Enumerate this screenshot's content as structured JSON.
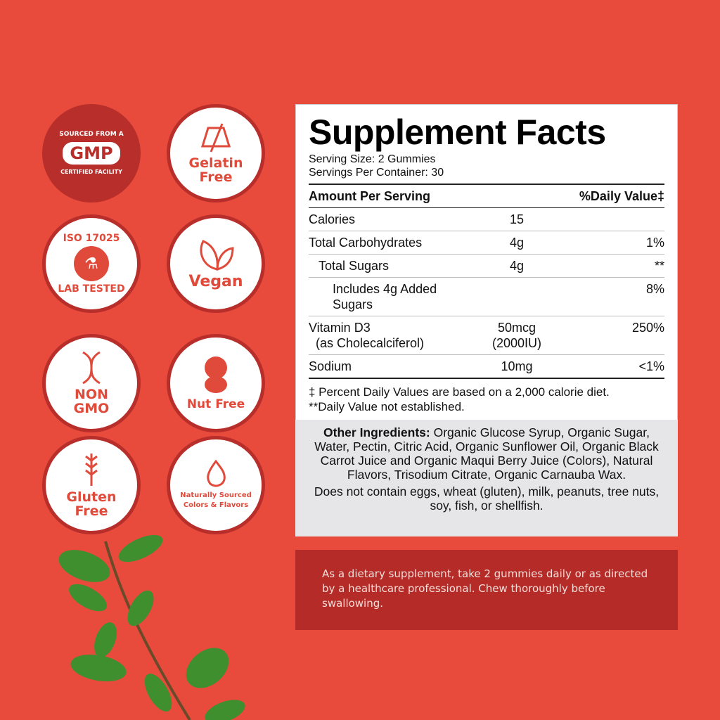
{
  "badges": [
    {
      "id": "gmp",
      "lines": [
        "SOURCED FROM A",
        "GMP",
        "CERTIFIED FACILITY"
      ],
      "icon": "gmp-seal-icon"
    },
    {
      "id": "gelatin",
      "label1": "Gelatin",
      "label2": "Free",
      "icon": "no-gelatin-icon"
    },
    {
      "id": "iso",
      "lines": [
        "ISO 17025",
        "LAB TESTED"
      ],
      "icon": "flask-check-icon"
    },
    {
      "id": "vegan",
      "label1": "Vegan",
      "icon": "leaves-icon"
    },
    {
      "id": "gmo",
      "label1": "NON",
      "label2": "GMO",
      "icon": "dna-icon"
    },
    {
      "id": "nut",
      "label1": "Nut Free",
      "icon": "peanut-icon"
    },
    {
      "id": "gluten",
      "label1": "Gluten",
      "label2": "Free",
      "icon": "wheat-icon"
    },
    {
      "id": "natural",
      "label1": "Naturally Sourced",
      "label2": "Colors & Flavors",
      "icon": "leaf-drop-icon"
    }
  ],
  "facts": {
    "title": "Supplement Facts",
    "serving_size": "Serving Size: 2 Gummies",
    "servings_per_container": "Servings Per Container: 30",
    "header_amount": "Amount Per Serving",
    "header_dv": "%Daily Value‡",
    "rows": [
      {
        "name": "Calories",
        "amount": "15",
        "dv": ""
      },
      {
        "name": "Total Carbohydrates",
        "amount": "4g",
        "dv": "1%"
      },
      {
        "name": "Total Sugars",
        "amount": "4g",
        "dv": "**"
      },
      {
        "name": "Includes 4g Added Sugars",
        "amount": "",
        "dv": "8%"
      },
      {
        "name": "Vitamin D3",
        "name2": "(as Cholecalciferol)",
        "amount": "50mcg",
        "amount2": "(2000IU)",
        "dv": "250%"
      },
      {
        "name": "Sodium",
        "amount": "10mg",
        "dv": "<1%"
      }
    ],
    "footnote1": "‡ Percent Daily Values are based on a 2,000 calorie diet.",
    "footnote2": "**Daily Value not established."
  },
  "ingredients": {
    "label": "Other Ingredients:",
    "text": " Organic Glucose Syrup, Organic Sugar, Water, Pectin, Citric Acid, Organic Sunflower Oil, Organic Black Carrot Juice and Organic Maqui Berry Juice (Colors), Natural Flavors, Trisodium Citrate, Organic Carnauba Wax.",
    "allergens": "Does not contain eggs, wheat (gluten), milk, peanuts, tree nuts, soy, fish, or shellfish."
  },
  "directions": "As a dietary supplement, take 2 gummies daily or as directed by a healthcare professional. Chew thoroughly before swallowing.",
  "colors": {
    "background": "#e84b3c",
    "dark_red": "#b82e2a",
    "panel_gray": "#e6e6e8"
  }
}
